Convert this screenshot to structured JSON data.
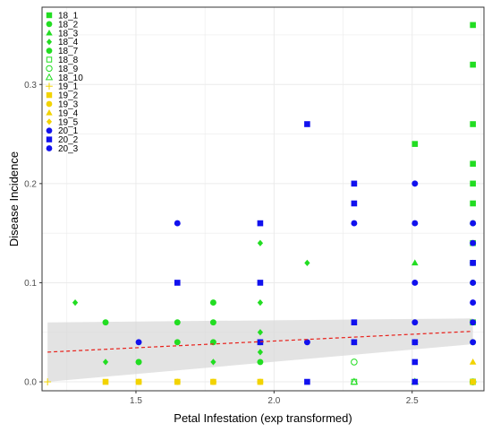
{
  "chart_data": {
    "type": "scatter",
    "title": "",
    "xlabel": "Petal Infestation (exp transformed)",
    "ylabel": "Disease Incidence",
    "xlim": [
      1.16,
      2.76
    ],
    "ylim": [
      -0.009,
      0.378
    ],
    "x_ticks": [
      1.5,
      2.0,
      2.5
    ],
    "x_tick_labels": [
      "1.5",
      "2.0",
      "2.5"
    ],
    "y_ticks": [
      0.0,
      0.1,
      0.2,
      0.3
    ],
    "y_tick_labels": [
      "0.0",
      "0.1",
      "0.2",
      "0.3"
    ],
    "grid": true,
    "legend_position": "top-left (inside plot)",
    "colors": {
      "group18": "#22dd22",
      "group19": "#f2d300",
      "group20": "#1111ee",
      "trend": "#e8201a",
      "band": "#d9d9d9"
    },
    "series": [
      {
        "name": "18_1",
        "marker": "square-filled",
        "color": "#22dd22",
        "x": [
          2.72,
          2.72,
          2.72,
          2.72,
          2.72,
          2.72,
          2.72,
          2.72,
          2.72,
          2.72,
          2.51
        ],
        "y": [
          0.36,
          0.32,
          0.26,
          0.22,
          0.2,
          0.18,
          0.14,
          0.12,
          0.06,
          0.0,
          0.24
        ]
      },
      {
        "name": "18_2",
        "marker": "circle-filled",
        "color": "#22dd22",
        "x": [
          2.72,
          2.72,
          2.72
        ],
        "y": [
          0.16,
          0.1,
          0.04
        ]
      },
      {
        "name": "18_3",
        "marker": "triangle-filled",
        "color": "#22dd22",
        "x": [
          2.51
        ],
        "y": [
          0.12
        ]
      },
      {
        "name": "18_4",
        "marker": "diamond-filled",
        "color": "#22dd22",
        "x": [
          1.28,
          1.39,
          1.78,
          1.95,
          1.95,
          1.95,
          2.12,
          2.29,
          1.95
        ],
        "y": [
          0.08,
          0.02,
          0.02,
          0.14,
          0.08,
          0.03,
          0.12,
          0.04,
          0.05
        ]
      },
      {
        "name": "18_7",
        "marker": "circle-filled",
        "color": "#22dd22",
        "x": [
          1.39,
          1.51,
          1.65,
          1.65,
          1.78,
          1.78,
          1.78,
          1.95,
          1.95,
          1.51
        ],
        "y": [
          0.06,
          0.02,
          0.06,
          0.04,
          0.08,
          0.06,
          0.04,
          0.04,
          0.02,
          0.02
        ]
      },
      {
        "name": "18_8",
        "marker": "square-open",
        "color": "#22dd22",
        "x": [
          2.29,
          2.72
        ],
        "y": [
          0.0,
          0.0
        ]
      },
      {
        "name": "18_9",
        "marker": "circle-open",
        "color": "#22dd22",
        "x": [
          2.29,
          2.72
        ],
        "y": [
          0.02,
          0.0
        ]
      },
      {
        "name": "18_10",
        "marker": "triangle-open",
        "color": "#22dd22",
        "x": [
          2.29,
          2.51
        ],
        "y": [
          0.0,
          0.0
        ]
      },
      {
        "name": "19_1",
        "marker": "plus",
        "color": "#f2d300",
        "x": [
          1.18
        ],
        "y": [
          0.0
        ]
      },
      {
        "name": "19_2",
        "marker": "square-filled",
        "color": "#f2d300",
        "x": [
          1.39,
          1.51,
          1.65,
          1.78,
          1.95,
          2.72
        ],
        "y": [
          0.0,
          0.0,
          0.0,
          0.0,
          0.0,
          0.0
        ]
      },
      {
        "name": "19_3",
        "marker": "circle-filled",
        "color": "#f2d300",
        "x": [
          1.51,
          1.65,
          1.78,
          1.95
        ],
        "y": [
          0.0,
          0.0,
          0.0,
          0.0
        ]
      },
      {
        "name": "19_4",
        "marker": "triangle-filled",
        "color": "#f2d300",
        "x": [
          2.72
        ],
        "y": [
          0.02
        ]
      },
      {
        "name": "19_5",
        "marker": "diamond-filled",
        "color": "#f2d300",
        "x": [
          1.65
        ],
        "y": [
          0.0
        ]
      },
      {
        "name": "20_1",
        "marker": "circle-filled",
        "color": "#1111ee",
        "x": [
          1.51,
          1.65,
          2.12,
          2.29,
          2.51,
          2.51,
          2.51,
          2.51,
          2.51,
          2.72,
          2.72,
          2.72,
          2.72,
          2.72,
          2.72
        ],
        "y": [
          0.04,
          0.16,
          0.04,
          0.16,
          0.2,
          0.16,
          0.1,
          0.06,
          0.04,
          0.16,
          0.12,
          0.1,
          0.08,
          0.06,
          0.04
        ]
      },
      {
        "name": "20_2",
        "marker": "square-filled",
        "color": "#1111ee",
        "x": [
          1.65,
          1.95,
          1.95,
          1.95,
          2.12,
          2.12,
          2.29,
          2.29,
          2.29,
          2.29,
          2.51,
          2.51,
          2.51,
          2.72
        ],
        "y": [
          0.1,
          0.16,
          0.1,
          0.04,
          0.26,
          0.0,
          0.2,
          0.18,
          0.06,
          0.04,
          0.04,
          0.02,
          0.0,
          0.12
        ]
      },
      {
        "name": "20_3",
        "marker": "circle-filled",
        "color": "#1111ee",
        "x": [
          2.72
        ],
        "y": [
          0.14
        ]
      }
    ],
    "trend": {
      "type": "linear",
      "style": "dashed",
      "x": [
        1.18,
        2.72
      ],
      "y": [
        0.03,
        0.051
      ],
      "band_lower": [
        0.0,
        0.038
      ],
      "band_upper": [
        0.06,
        0.064
      ]
    }
  }
}
